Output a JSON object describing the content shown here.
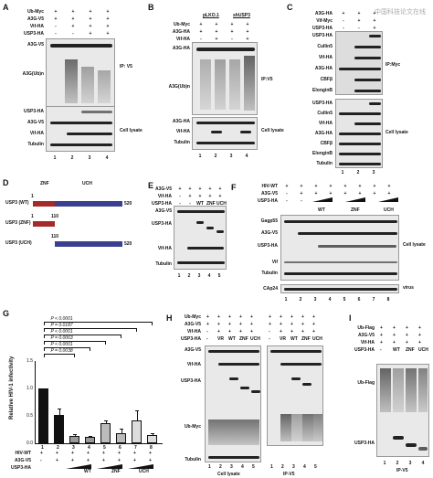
{
  "watermark": "中国科技论文在线",
  "panels": {
    "A": {
      "letter": "A",
      "rows": [
        {
          "label": "Ub-Myc",
          "vals": [
            "+",
            "+",
            "+",
            "+"
          ]
        },
        {
          "label": "A3G-V5",
          "vals": [
            "+",
            "+",
            "+",
            "+"
          ]
        },
        {
          "label": "Vif-HA",
          "vals": [
            "-",
            "+",
            "+",
            "+"
          ]
        },
        {
          "label": "USP3-HA",
          "vals": [
            "-",
            "-",
            "+",
            "+"
          ]
        }
      ],
      "bands_ip": [
        "A3G-V5",
        "A3G(Ub)n"
      ],
      "ip_label": "IP: V5",
      "bands_lysate": [
        "USP3-HA",
        "A3G-V5",
        "Vif-HA",
        "Tubulin"
      ],
      "lysate_label": "Cell lysate",
      "lanes": [
        "1",
        "2",
        "3",
        "4"
      ]
    },
    "B": {
      "letter": "B",
      "rows": [
        {
          "label": "Ub-Myc",
          "vals": [
            "+",
            "+",
            "+",
            "+"
          ]
        },
        {
          "label": "A3G-HA",
          "vals": [
            "+",
            "+",
            "+",
            "+"
          ]
        },
        {
          "label": "Vif-HA",
          "vals": [
            "-",
            "+",
            "-",
            "+"
          ]
        }
      ],
      "groups": [
        "pLKO.1",
        "shUSP3"
      ],
      "bands_ip": [
        "A3G-HA",
        "A3G(Ub)n"
      ],
      "ip_label": "IP:V5",
      "bands_lysate": [
        "A3G-HA",
        "Vif-HA",
        "Tubulin"
      ],
      "lysate_label": "Cell lysate",
      "lanes": [
        "1",
        "2",
        "3",
        "4"
      ]
    },
    "C": {
      "letter": "C",
      "rows": [
        {
          "label": "A3G-HA",
          "vals": [
            "+",
            "+",
            "+"
          ]
        },
        {
          "label": "Vif-Myc",
          "vals": [
            "-",
            "+",
            "+"
          ]
        },
        {
          "label": "USP3-HA",
          "vals": [
            "-",
            "-",
            "+"
          ]
        }
      ],
      "bands_ip": [
        "USP3-HA",
        "Cullin5",
        "Vif-HA",
        "A3G-HA",
        "CBFβ",
        "ElonginB"
      ],
      "ip_label": "IP:Myc",
      "bands_lysate": [
        "USP3-HA",
        "Cullin5",
        "Vif-HA",
        "A3G-HA",
        "CBFβ",
        "ElonginB",
        "Tubulin"
      ],
      "lysate_label": "Cell lysate",
      "lanes": [
        "1",
        "2",
        "3"
      ]
    },
    "D": {
      "letter": "D",
      "domains": [
        "ZNF",
        "UCH"
      ],
      "constructs": [
        {
          "name": "USP3 (WT)",
          "start": "1",
          "mid": "110",
          "end": "520"
        },
        {
          "name": "USP3 (ZNF)",
          "start": "1",
          "mid": "110",
          "end": ""
        },
        {
          "name": "USP3 (UCH)",
          "start": "",
          "mid": "110",
          "end": "520"
        }
      ]
    },
    "E": {
      "letter": "E",
      "rows": [
        {
          "label": "A3G-V5",
          "vals": [
            "+",
            "+",
            "+",
            "+",
            "+"
          ]
        },
        {
          "label": "Vif-HA",
          "vals": [
            "-",
            "+",
            "+",
            "+",
            "+"
          ]
        },
        {
          "label": "USP3-HA",
          "vals": [
            "-",
            "-",
            "WT",
            "ZNF",
            "UCH"
          ]
        }
      ],
      "bands": [
        "A3G-V5",
        "USP3-HA",
        "Vif-HA",
        "Tubulin"
      ],
      "lanes": [
        "1",
        "2",
        "3",
        "4",
        "5"
      ]
    },
    "F": {
      "letter": "F",
      "rows": [
        {
          "label": "HIV-WT",
          "vals": [
            "+",
            "+",
            "+",
            "+",
            "+",
            "+",
            "+",
            "+"
          ]
        },
        {
          "label": "A3G-V5",
          "vals": [
            "-",
            "+",
            "+",
            "+",
            "+",
            "+",
            "+",
            "+"
          ]
        },
        {
          "label": "USP3-HA",
          "vals": [
            "-",
            "-",
            "",
            "",
            "",
            "",
            "",
            ""
          ]
        }
      ],
      "groups": [
        "WT",
        "ZNF",
        "UCH"
      ],
      "bands_lysate": [
        "Gagp55",
        "A3G-V5",
        "USP3-HA",
        "Vif",
        "Tubulin"
      ],
      "lysate_label": "Cell lysate",
      "bands_virus": [
        "CAp24"
      ],
      "virus_label": "virus",
      "lanes": [
        "1",
        "2",
        "3",
        "4",
        "5",
        "6",
        "7",
        "8"
      ]
    },
    "G": {
      "letter": "G",
      "ylabel": "Relative HIV-1 infectivity",
      "pvalues": [
        "P = 0.0038",
        "P < 0.0001",
        "P = 0.0063",
        "P < 0.0001",
        "P = 0.0187",
        "P < 0.0001"
      ],
      "rows": [
        {
          "label": "HIV-WT",
          "vals": [
            "+",
            "+",
            "+",
            "+",
            "+",
            "+",
            "+",
            "+"
          ]
        },
        {
          "label": "A3G-V5",
          "vals": [
            "-",
            "+",
            "+",
            "+",
            "+",
            "+",
            "+",
            "+"
          ]
        },
        {
          "label": "USP3-HA",
          "vals": [
            "",
            "",
            "",
            "",
            "",
            "",
            "",
            ""
          ]
        }
      ],
      "groups": [
        "WT",
        "ZNF",
        "UCH"
      ]
    },
    "H": {
      "letter": "H",
      "rows": [
        {
          "label": "Ub-Myc",
          "vals": [
            "+",
            "+",
            "+",
            "+",
            "+",
            "+",
            "+",
            "+",
            "+",
            "+"
          ]
        },
        {
          "label": "A3G-V5",
          "vals": [
            "+",
            "+",
            "+",
            "+",
            "+",
            "+",
            "+",
            "+",
            "+",
            "+"
          ]
        },
        {
          "label": "Vif-HA",
          "vals": [
            "-",
            "+",
            "+",
            "+",
            "+",
            "-",
            "+",
            "+",
            "+",
            "+"
          ]
        },
        {
          "label": "USP3-HA",
          "vals": [
            "-",
            "VR",
            "WT",
            "ZNF",
            "UCH",
            "-",
            "VR",
            "WT",
            "ZNF",
            "UCH"
          ]
        }
      ],
      "bands": [
        "A3G-V5",
        "Vif-HA",
        "USP3-HA",
        "Ub-Myc",
        "Tubulin"
      ],
      "lane_groups": [
        {
          "lanes": [
            "1",
            "2",
            "3",
            "4",
            "5"
          ],
          "label": "Cell lysate"
        },
        {
          "lanes": [
            "1",
            "2",
            "3",
            "4",
            "5"
          ],
          "label": "IP-V5"
        }
      ]
    },
    "I": {
      "letter": "I",
      "rows": [
        {
          "label": "Ub-Flag",
          "vals": [
            "+",
            "+",
            "+",
            "+"
          ]
        },
        {
          "label": "A3G-V5",
          "vals": [
            "+",
            "+",
            "+",
            "+"
          ]
        },
        {
          "label": "Vif-HA",
          "vals": [
            "+",
            "+",
            "+",
            "+"
          ]
        },
        {
          "label": "USP3-HA",
          "vals": [
            "-",
            "WT",
            "ZNF",
            "UCH"
          ]
        }
      ],
      "bands": [
        "Ub-Flag",
        "USP3-HA"
      ],
      "lanes": [
        "1",
        "2",
        "3",
        "4"
      ],
      "lane_label": "IP-V5"
    }
  },
  "chart_data": {
    "type": "bar",
    "categories": [
      "1",
      "2",
      "3",
      "4",
      "5",
      "6",
      "7",
      "8"
    ],
    "values": [
      1.0,
      0.52,
      0.13,
      0.11,
      0.37,
      0.19,
      0.42,
      0.15
    ],
    "errors": [
      0.0,
      0.12,
      0.03,
      0.02,
      0.05,
      0.08,
      0.18,
      0.04
    ],
    "fills": [
      "#111111",
      "#111111",
      "#999999",
      "#999999",
      "#bbbbbb",
      "#bbbbbb",
      "#dddddd",
      "#dddddd"
    ],
    "ylabel": "Relative HIV-1 infectivity",
    "ylim": [
      0,
      1.5
    ],
    "yticks": [
      "0.0",
      "0.5",
      "1.0",
      "1.5"
    ],
    "grid": false
  }
}
